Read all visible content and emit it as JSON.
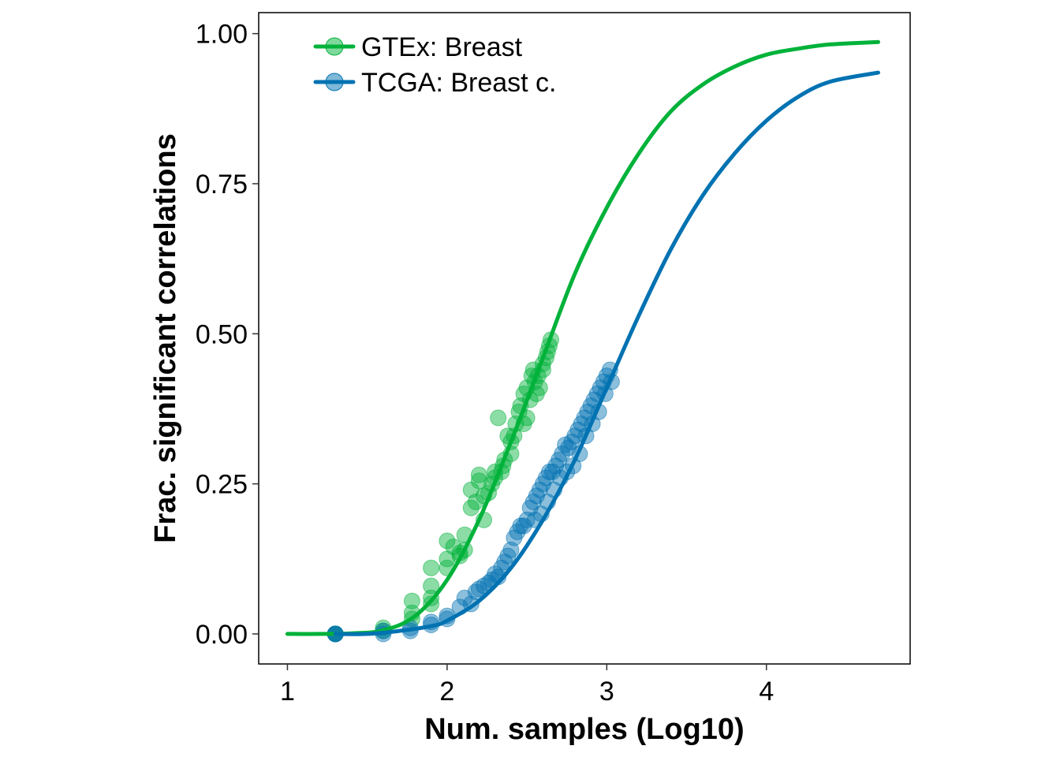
{
  "chart_data": {
    "type": "scatter",
    "xlabel": "Num. samples (Log10)",
    "ylabel": "Frac. significant correlations",
    "xlim": [
      0.82,
      4.9
    ],
    "ylim": [
      -0.05,
      1.035
    ],
    "x_ticks": [
      1,
      2,
      3,
      4
    ],
    "x_tick_labels": [
      "1",
      "2",
      "3",
      "4"
    ],
    "y_ticks": [
      0,
      0.25,
      0.5,
      0.75,
      1.0
    ],
    "y_tick_labels": [
      "0.00",
      "0.25",
      "0.50",
      "0.75",
      "1.00"
    ],
    "grid": false,
    "legend_position": "top-left",
    "series": [
      {
        "name": "GTEx: Breast",
        "color": "#00b23a",
        "fit_line": {
          "x": [
            1.0,
            1.2,
            1.4,
            1.6,
            1.8,
            2.0,
            2.2,
            2.4,
            2.6,
            2.8,
            3.0,
            3.2,
            3.4,
            3.6,
            3.8,
            4.0,
            4.2,
            4.4,
            4.7
          ],
          "y": [
            0.0,
            0.0,
            0.001,
            0.006,
            0.03,
            0.09,
            0.19,
            0.32,
            0.46,
            0.6,
            0.71,
            0.8,
            0.87,
            0.915,
            0.945,
            0.965,
            0.975,
            0.982,
            0.986
          ]
        },
        "points": {
          "x": [
            1.3,
            1.3,
            1.6,
            1.6,
            1.78,
            1.78,
            1.78,
            1.9,
            1.9,
            1.9,
            1.9,
            2.0,
            2.0,
            2.0,
            2.04,
            2.08,
            2.08,
            2.11,
            2.11,
            2.15,
            2.15,
            2.18,
            2.2,
            2.2,
            2.23,
            2.23,
            2.26,
            2.28,
            2.3,
            2.3,
            2.32,
            2.34,
            2.35,
            2.36,
            2.38,
            2.4,
            2.4,
            2.42,
            2.43,
            2.45,
            2.46,
            2.48,
            2.48,
            2.5,
            2.5,
            2.52,
            2.53,
            2.54,
            2.55,
            2.56,
            2.57,
            2.58,
            2.6,
            2.6,
            2.62,
            2.63,
            2.64,
            2.65
          ],
          "y": [
            0.0,
            0.0,
            0.01,
            0.005,
            0.055,
            0.035,
            0.025,
            0.11,
            0.08,
            0.06,
            0.05,
            0.155,
            0.125,
            0.11,
            0.145,
            0.13,
            0.135,
            0.165,
            0.14,
            0.24,
            0.21,
            0.22,
            0.265,
            0.255,
            0.19,
            0.23,
            0.235,
            0.25,
            0.27,
            0.26,
            0.36,
            0.27,
            0.28,
            0.29,
            0.33,
            0.3,
            0.32,
            0.33,
            0.35,
            0.37,
            0.38,
            0.4,
            0.35,
            0.41,
            0.36,
            0.39,
            0.43,
            0.44,
            0.42,
            0.4,
            0.43,
            0.41,
            0.45,
            0.44,
            0.46,
            0.47,
            0.48,
            0.49
          ]
        }
      },
      {
        "name": "TCGA: Breast c.",
        "color": "#0072b2",
        "fit_line": {
          "x": [
            1.3,
            1.5,
            1.7,
            1.9,
            2.0,
            2.2,
            2.4,
            2.6,
            2.8,
            3.0,
            3.2,
            3.4,
            3.6,
            3.8,
            4.0,
            4.2,
            4.4,
            4.7
          ],
          "y": [
            0.0,
            0.0,
            0.005,
            0.013,
            0.022,
            0.055,
            0.11,
            0.19,
            0.29,
            0.41,
            0.53,
            0.64,
            0.73,
            0.8,
            0.855,
            0.895,
            0.92,
            0.935
          ]
        },
        "points": {
          "x": [
            1.3,
            1.3,
            1.3,
            1.6,
            1.6,
            1.77,
            1.77,
            1.9,
            1.9,
            2.0,
            2.0,
            2.08,
            2.11,
            2.15,
            2.18,
            2.2,
            2.23,
            2.26,
            2.28,
            2.3,
            2.32,
            2.34,
            2.36,
            2.38,
            2.4,
            2.42,
            2.44,
            2.46,
            2.48,
            2.5,
            2.52,
            2.54,
            2.56,
            2.58,
            2.6,
            2.62,
            2.64,
            2.66,
            2.68,
            2.7,
            2.72,
            2.74,
            2.76,
            2.78,
            2.8,
            2.82,
            2.84,
            2.86,
            2.88,
            2.9,
            2.92,
            2.94,
            2.96,
            2.98,
            3.0,
            3.02,
            3.03,
            2.99,
            2.95,
            2.91,
            2.87,
            2.83,
            2.79,
            2.75,
            2.71,
            2.67,
            2.63,
            2.59,
            2.55
          ],
          "y": [
            0.0,
            0.0,
            0.0,
            0.0,
            0.005,
            0.005,
            0.01,
            0.015,
            0.02,
            0.025,
            0.03,
            0.045,
            0.06,
            0.05,
            0.07,
            0.075,
            0.08,
            0.085,
            0.09,
            0.1,
            0.095,
            0.11,
            0.12,
            0.13,
            0.14,
            0.16,
            0.17,
            0.18,
            0.18,
            0.19,
            0.21,
            0.22,
            0.23,
            0.24,
            0.25,
            0.26,
            0.27,
            0.27,
            0.28,
            0.29,
            0.3,
            0.315,
            0.31,
            0.32,
            0.33,
            0.34,
            0.35,
            0.36,
            0.37,
            0.38,
            0.39,
            0.4,
            0.41,
            0.42,
            0.43,
            0.44,
            0.42,
            0.4,
            0.37,
            0.35,
            0.33,
            0.3,
            0.28,
            0.27,
            0.26,
            0.24,
            0.22,
            0.2,
            0.19
          ]
        }
      }
    ]
  }
}
